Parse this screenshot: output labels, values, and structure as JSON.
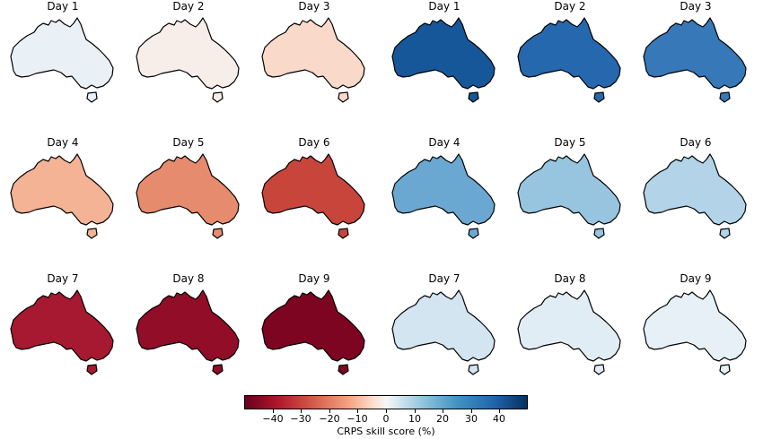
{
  "left_panels": {
    "title": "",
    "maps": [
      {
        "label": "Day 1",
        "level": 8,
        "color": "#eaf1f6"
      },
      {
        "label": "Day 2",
        "level": -2,
        "color": "#f7eee9"
      },
      {
        "label": "Day 3",
        "level": -10,
        "color": "#f9d9c9"
      },
      {
        "label": "Day 4",
        "level": -18,
        "color": "#f3b394"
      },
      {
        "label": "Day 5",
        "level": -25,
        "color": "#e78b6e"
      },
      {
        "label": "Day 6",
        "level": -33,
        "color": "#c8453c"
      },
      {
        "label": "Day 7",
        "level": -42,
        "color": "#a71930"
      },
      {
        "label": "Day 8",
        "level": -46,
        "color": "#920d27"
      },
      {
        "label": "Day 9",
        "level": -49,
        "color": "#7d0522"
      }
    ]
  },
  "right_panels": {
    "title": "",
    "maps": [
      {
        "label": "Day 1",
        "level": 40,
        "color": "#16579a"
      },
      {
        "label": "Day 2",
        "level": 35,
        "color": "#2668ad"
      },
      {
        "label": "Day 3",
        "level": 32,
        "color": "#3678b8"
      },
      {
        "label": "Day 4",
        "level": 22,
        "color": "#6aa8d2"
      },
      {
        "label": "Day 5",
        "level": 16,
        "color": "#97c5e0"
      },
      {
        "label": "Day 6",
        "level": 13,
        "color": "#b2d3e8"
      },
      {
        "label": "Day 7",
        "level": 8,
        "color": "#d2e5f1"
      },
      {
        "label": "Day 8",
        "level": 5,
        "color": "#e1edf5"
      },
      {
        "label": "Day 9",
        "level": 4,
        "color": "#e6f0f6"
      }
    ]
  },
  "colorbar": {
    "label": "CRPS skill score (%)",
    "range": [
      -50,
      50
    ],
    "ticks": [
      -40,
      -30,
      -20,
      -10,
      0,
      10,
      20,
      30,
      40
    ],
    "tick_labels": [
      "−40",
      "−30",
      "−20",
      "−10",
      "0",
      "10",
      "20",
      "30",
      "40"
    ],
    "colormap": "RdBu",
    "color_negative": "#67001f",
    "color_zero": "#f7f7f7",
    "color_positive": "#053061"
  }
}
